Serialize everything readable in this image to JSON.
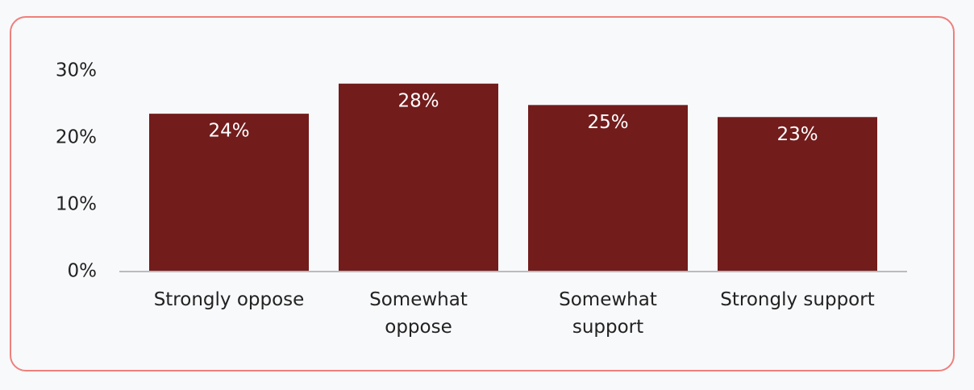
{
  "chart_data": {
    "type": "bar",
    "categories": [
      "Strongly oppose",
      "Somewhat oppose",
      "Somewhat support",
      "Strongly support"
    ],
    "values": [
      23.6,
      28.1,
      24.9,
      23.1
    ],
    "value_labels": [
      "24%",
      "28%",
      "25%",
      "23%"
    ],
    "color": "#721c1c",
    "ylim": [
      0,
      30
    ],
    "yticks": [
      {
        "value": 0,
        "label": "0%"
      },
      {
        "value": 10,
        "label": "10%"
      },
      {
        "value": 20,
        "label": "20%"
      },
      {
        "value": 30,
        "label": "30%"
      }
    ],
    "grid": false
  }
}
